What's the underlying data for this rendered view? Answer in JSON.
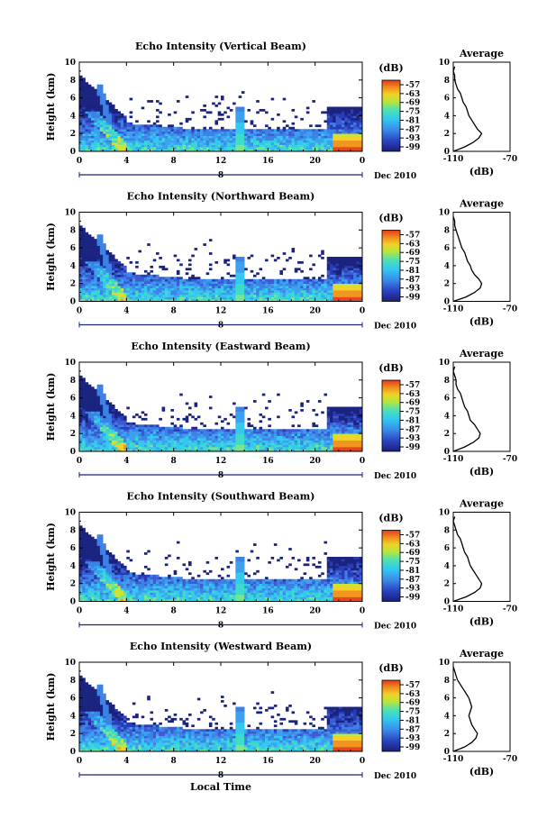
{
  "chart_data": [
    {
      "type": "heatmap",
      "title": "Echo Intensity (Vertical Beam)",
      "ylabel": "Height (km)",
      "x_ticks": [
        "0",
        "4",
        "8",
        "12",
        "16",
        "20",
        "0"
      ],
      "y_ticks": [
        "0",
        "2",
        "4",
        "6",
        "8",
        "10"
      ],
      "xlim": [
        0,
        24
      ],
      "ylim": [
        0,
        10
      ],
      "date_marker": "8",
      "date_label": "Dec 2010",
      "colorbar": {
        "label": "(dB)",
        "ticks": [
          "-57",
          "-63",
          "-69",
          "-75",
          "-81",
          "-87",
          "-93",
          "-99"
        ]
      },
      "average": {
        "title": "Average",
        "xlabel": "(dB)",
        "x_ticks": [
          "-110",
          "-70"
        ],
        "xlim": [
          -110,
          -70
        ],
        "profile": [
          [
            -110,
            0
          ],
          [
            -102,
            0.5
          ],
          [
            -96,
            1
          ],
          [
            -92,
            1.5
          ],
          [
            -90,
            2
          ],
          [
            -93,
            2.5
          ],
          [
            -95,
            3
          ],
          [
            -97,
            3.5
          ],
          [
            -99,
            4
          ],
          [
            -100,
            4.5
          ],
          [
            -101,
            5
          ],
          [
            -103,
            5.5
          ],
          [
            -104,
            6
          ],
          [
            -105,
            6.5
          ],
          [
            -107,
            7
          ],
          [
            -108,
            7.5
          ],
          [
            -109,
            8
          ],
          [
            -109,
            8.5
          ],
          [
            -110,
            9
          ],
          [
            -109,
            9.5
          ]
        ]
      }
    },
    {
      "type": "heatmap",
      "title": "Echo Intensity (Northward Beam)",
      "ylabel": "Height (km)",
      "x_ticks": [
        "0",
        "4",
        "8",
        "12",
        "16",
        "20",
        "0"
      ],
      "y_ticks": [
        "0",
        "2",
        "4",
        "6",
        "8",
        "10"
      ],
      "xlim": [
        0,
        24
      ],
      "ylim": [
        0,
        10
      ],
      "date_marker": "8",
      "date_label": "Dec 2010",
      "colorbar": {
        "label": "(dB)",
        "ticks": [
          "-57",
          "-63",
          "-69",
          "-75",
          "-81",
          "-87",
          "-93",
          "-99"
        ]
      },
      "average": {
        "title": "Average",
        "xlabel": "(dB)",
        "x_ticks": [
          "-110",
          "-70"
        ],
        "xlim": [
          -110,
          -70
        ],
        "profile": [
          [
            -110,
            0
          ],
          [
            -101,
            0.5
          ],
          [
            -95,
            1
          ],
          [
            -91,
            1.5
          ],
          [
            -90,
            2
          ],
          [
            -92,
            2.5
          ],
          [
            -95,
            3
          ],
          [
            -97,
            3.5
          ],
          [
            -98,
            4
          ],
          [
            -100,
            4.5
          ],
          [
            -101,
            5
          ],
          [
            -102,
            5.5
          ],
          [
            -104,
            6
          ],
          [
            -105,
            6.5
          ],
          [
            -106,
            7
          ],
          [
            -107,
            7.5
          ],
          [
            -108,
            8
          ],
          [
            -109,
            8.5
          ],
          [
            -109,
            9
          ],
          [
            -110,
            9.5
          ]
        ]
      }
    },
    {
      "type": "heatmap",
      "title": "Echo Intensity (Eastward Beam)",
      "ylabel": "Height (km)",
      "x_ticks": [
        "0",
        "4",
        "8",
        "12",
        "16",
        "20",
        "0"
      ],
      "y_ticks": [
        "0",
        "2",
        "4",
        "6",
        "8",
        "10"
      ],
      "xlim": [
        0,
        24
      ],
      "ylim": [
        0,
        10
      ],
      "date_marker": "8",
      "date_label": "Dec 2010",
      "colorbar": {
        "label": "(dB)",
        "ticks": [
          "-57",
          "-63",
          "-69",
          "-75",
          "-81",
          "-87",
          "-93",
          "-99"
        ]
      },
      "average": {
        "title": "Average",
        "xlabel": "(dB)",
        "x_ticks": [
          "-110",
          "-70"
        ],
        "xlim": [
          -110,
          -70
        ],
        "profile": [
          [
            -110,
            0
          ],
          [
            -102,
            0.5
          ],
          [
            -96,
            1
          ],
          [
            -92,
            1.5
          ],
          [
            -91,
            2
          ],
          [
            -93,
            2.5
          ],
          [
            -95,
            3
          ],
          [
            -98,
            3.5
          ],
          [
            -99,
            4
          ],
          [
            -100,
            4.5
          ],
          [
            -102,
            5
          ],
          [
            -103,
            5.5
          ],
          [
            -104,
            6
          ],
          [
            -105,
            6.5
          ],
          [
            -107,
            7
          ],
          [
            -108,
            7.5
          ],
          [
            -108,
            8
          ],
          [
            -109,
            8.5
          ],
          [
            -110,
            9
          ],
          [
            -109,
            9.5
          ]
        ]
      }
    },
    {
      "type": "heatmap",
      "title": "Echo Intensity (Southward Beam)",
      "ylabel": "Height (km)",
      "x_ticks": [
        "0",
        "4",
        "8",
        "12",
        "16",
        "20",
        "0"
      ],
      "y_ticks": [
        "0",
        "2",
        "4",
        "6",
        "8",
        "10"
      ],
      "xlim": [
        0,
        24
      ],
      "ylim": [
        0,
        10
      ],
      "date_marker": "8",
      "date_label": "Dec 2010",
      "colorbar": {
        "label": "(dB)",
        "ticks": [
          "-57",
          "-63",
          "-69",
          "-75",
          "-81",
          "-87",
          "-93",
          "-99"
        ]
      },
      "average": {
        "title": "Average",
        "xlabel": "(dB)",
        "x_ticks": [
          "-110",
          "-70"
        ],
        "xlim": [
          -110,
          -70
        ],
        "profile": [
          [
            -110,
            0
          ],
          [
            -101,
            0.5
          ],
          [
            -95,
            1
          ],
          [
            -91,
            1.5
          ],
          [
            -90,
            2
          ],
          [
            -92,
            2.5
          ],
          [
            -94,
            3
          ],
          [
            -96,
            3.5
          ],
          [
            -98,
            4
          ],
          [
            -99,
            4.5
          ],
          [
            -100,
            5
          ],
          [
            -102,
            5.5
          ],
          [
            -103,
            6
          ],
          [
            -104,
            6.5
          ],
          [
            -105,
            7
          ],
          [
            -107,
            7.5
          ],
          [
            -108,
            8
          ],
          [
            -109,
            8.5
          ],
          [
            -110,
            9
          ],
          [
            -109,
            9.5
          ]
        ]
      }
    },
    {
      "type": "heatmap",
      "title": "Echo Intensity (Westward Beam)",
      "ylabel": "Height (km)",
      "xlabel": "Local Time",
      "x_ticks": [
        "0",
        "4",
        "8",
        "12",
        "16",
        "20",
        "0"
      ],
      "y_ticks": [
        "0",
        "2",
        "4",
        "6",
        "8",
        "10"
      ],
      "xlim": [
        0,
        24
      ],
      "ylim": [
        0,
        10
      ],
      "date_marker": "8",
      "date_label": "Dec 2010",
      "colorbar": {
        "label": "(dB)",
        "ticks": [
          "-57",
          "-63",
          "-69",
          "-75",
          "-81",
          "-87",
          "-93",
          "-99"
        ]
      },
      "average": {
        "title": "Average",
        "xlabel": "(dB)",
        "x_ticks": [
          "-110",
          "-70"
        ],
        "xlim": [
          -110,
          -70
        ],
        "profile": [
          [
            -110,
            0
          ],
          [
            -102,
            0.5
          ],
          [
            -97,
            1
          ],
          [
            -94,
            1.5
          ],
          [
            -93,
            2
          ],
          [
            -95,
            2.5
          ],
          [
            -97,
            3
          ],
          [
            -98,
            3.5
          ],
          [
            -99,
            4
          ],
          [
            -98,
            4.5
          ],
          [
            -97,
            5
          ],
          [
            -98,
            5.5
          ],
          [
            -99,
            6
          ],
          [
            -101,
            6.5
          ],
          [
            -103,
            7
          ],
          [
            -105,
            7.5
          ],
          [
            -107,
            8
          ],
          [
            -108,
            8.5
          ],
          [
            -109,
            9
          ],
          [
            -110,
            9.5
          ]
        ]
      }
    }
  ],
  "colors": {
    "colormap": [
      "#1a237e",
      "#283cb4",
      "#3c5ad2",
      "#3c82e6",
      "#3ca0f0",
      "#32c8f0",
      "#3cdcc8",
      "#78e68c",
      "#c8e632",
      "#f0d228",
      "#f0961e",
      "#e6461e"
    ]
  }
}
